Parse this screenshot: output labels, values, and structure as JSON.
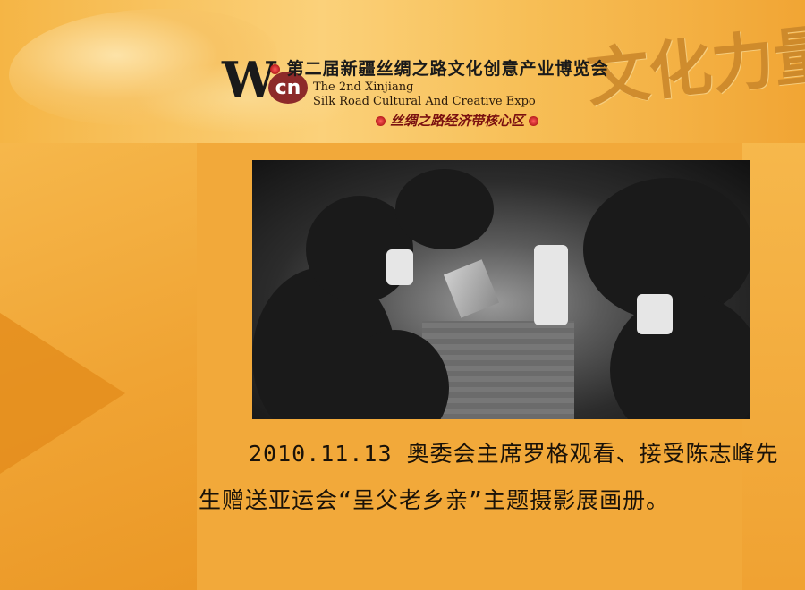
{
  "banner": {
    "logo_w": "W",
    "logo_cn": "cn",
    "title_cn": "第二届新疆丝绸之路文化创意产业博览会",
    "title_en_line1": "The 2nd Xinjiang",
    "title_en_line2": "Silk Road Cultural And Creative Expo",
    "zone_cn": "丝绸之路经济带核心区",
    "calligraphy": "文化力量"
  },
  "photo": {
    "icon": "press-crowd-photo"
  },
  "caption": {
    "text": "2010.11.13 奥委会主席罗格观看、接受陈志峰先生赠送亚运会“呈父老乡亲”主题摄影展画册。"
  },
  "colors": {
    "background": "#f2a93a",
    "accent_red": "#8d2a2a",
    "caption_text": "#1a1208"
  }
}
